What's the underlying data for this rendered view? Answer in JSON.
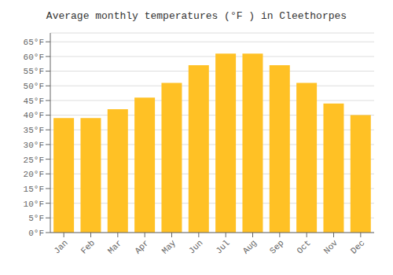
{
  "chart_data": {
    "type": "bar",
    "title": "Average monthly temperatures (°F ) in Cleethorpes",
    "categories": [
      "Jan",
      "Feb",
      "Mar",
      "Apr",
      "May",
      "Jun",
      "Jul",
      "Aug",
      "Sep",
      "Oct",
      "Nov",
      "Dec"
    ],
    "values": [
      39,
      39,
      42,
      46,
      51,
      57,
      61,
      61,
      57,
      51,
      44,
      40
    ],
    "color": "#FFC125",
    "ylim": [
      0,
      68
    ],
    "yticks": [
      {
        "value": 0,
        "label": "0°F"
      },
      {
        "value": 5,
        "label": "5°F"
      },
      {
        "value": 10,
        "label": "10°F"
      },
      {
        "value": 15,
        "label": "15°F"
      },
      {
        "value": 20,
        "label": "20°F"
      },
      {
        "value": 25,
        "label": "25°F"
      },
      {
        "value": 30,
        "label": "30°F"
      },
      {
        "value": 35,
        "label": "35°F"
      },
      {
        "value": 40,
        "label": "40°F"
      },
      {
        "value": 45,
        "label": "45°F"
      },
      {
        "value": 50,
        "label": "50°F"
      },
      {
        "value": 55,
        "label": "55°F"
      },
      {
        "value": 60,
        "label": "60°F"
      },
      {
        "value": 65,
        "label": "65°F"
      }
    ],
    "grid": true
  }
}
